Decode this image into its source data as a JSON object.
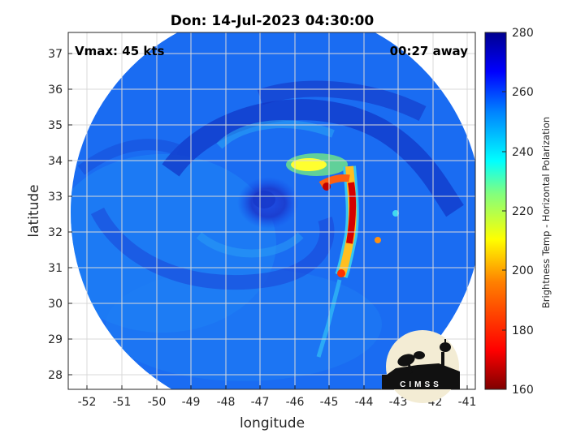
{
  "figure": {
    "title": "Don: 14-Jul-2023 04:30:00",
    "vmax_label": "Vmax: 45 kts",
    "time_offset_label": "00:27 away",
    "xlabel": "longitude",
    "ylabel": "latitude",
    "x_ticks": [
      "-52",
      "-51",
      "-50",
      "-49",
      "-48",
      "-47",
      "-46",
      "-45",
      "-44",
      "-43",
      "-42",
      "-41"
    ],
    "y_ticks": [
      "28",
      "29",
      "30",
      "31",
      "32",
      "33",
      "34",
      "35",
      "36",
      "37"
    ],
    "xlim": [
      -52.5,
      -40.8
    ],
    "ylim": [
      27.6,
      37.6
    ],
    "grid": true,
    "storm_center": {
      "lon": -46.7,
      "lat": 32.9
    },
    "logo_text": "CIMSS"
  },
  "colorbar": {
    "label": "Brightness Temp - Horizontal Polarization",
    "ticks": [
      "160",
      "180",
      "200",
      "220",
      "240",
      "260",
      "280"
    ],
    "range": [
      160,
      280
    ],
    "colormap": "jet",
    "colors": [
      "#7f0000",
      "#ff0000",
      "#ff8000",
      "#ffff00",
      "#80ff80",
      "#00ffff",
      "#0080ff",
      "#0000ff",
      "#00008f"
    ]
  }
}
